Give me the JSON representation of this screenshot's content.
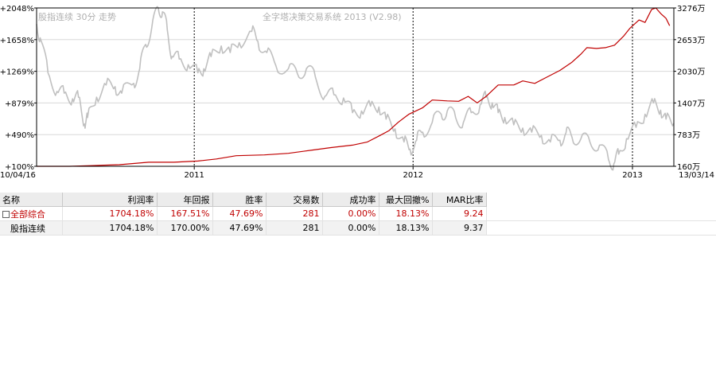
{
  "watermark": {
    "left": "股指连续 30分 走势",
    "center": "全字塔决策交易系统 2013 (V2.98)"
  },
  "chart_data": {
    "type": "line",
    "y_left": {
      "ticks": [
        "+2048%",
        "+1658%",
        "+1269%",
        "+879%",
        "+490%",
        "+100%"
      ],
      "range": [
        100,
        2048
      ]
    },
    "y_right": {
      "ticks": [
        "3276万",
        "2653万",
        "2030万",
        "1407万",
        "783万",
        "160万"
      ],
      "range": [
        160,
        3276
      ]
    },
    "x": {
      "start": "10/04/16",
      "end": "13/03/14",
      "year_labels": [
        {
          "label": "2011",
          "date": "2011-01-04"
        },
        {
          "label": "2012",
          "date": "2012-01-04"
        },
        {
          "label": "2013",
          "date": "2013-01-04"
        }
      ]
    },
    "series": [
      {
        "color": "#c0c0c0",
        "points": [
          [
            "2010-04-16",
            1850
          ],
          [
            "2010-04-22",
            1680
          ],
          [
            "2010-05-05",
            1250
          ],
          [
            "2010-05-20",
            1020
          ],
          [
            "2010-06-01",
            1000
          ],
          [
            "2010-06-15",
            930
          ],
          [
            "2010-06-25",
            950
          ],
          [
            "2010-07-05",
            620
          ],
          [
            "2010-07-10",
            700
          ],
          [
            "2010-07-25",
            950
          ],
          [
            "2010-08-10",
            1100
          ],
          [
            "2010-08-25",
            1080
          ],
          [
            "2010-09-05",
            1000
          ],
          [
            "2010-09-25",
            1120
          ],
          [
            "2010-10-05",
            1300
          ],
          [
            "2010-10-15",
            1600
          ],
          [
            "2010-10-25",
            1800
          ],
          [
            "2010-11-05",
            2048
          ],
          [
            "2010-11-12",
            2000
          ],
          [
            "2010-11-20",
            1780
          ],
          [
            "2010-11-28",
            1450
          ],
          [
            "2010-12-10",
            1420
          ],
          [
            "2010-12-25",
            1350
          ],
          [
            "2011-01-10",
            1250
          ],
          [
            "2011-01-20",
            1300
          ],
          [
            "2011-02-01",
            1450
          ],
          [
            "2011-02-18",
            1580
          ],
          [
            "2011-03-05",
            1500
          ],
          [
            "2011-03-20",
            1620
          ],
          [
            "2011-04-10",
            1760
          ],
          [
            "2011-04-20",
            1640
          ],
          [
            "2011-05-05",
            1500
          ],
          [
            "2011-05-20",
            1340
          ],
          [
            "2011-06-10",
            1300
          ],
          [
            "2011-06-25",
            1240
          ],
          [
            "2011-07-10",
            1300
          ],
          [
            "2011-07-25",
            1200
          ],
          [
            "2011-08-10",
            960
          ],
          [
            "2011-08-25",
            980
          ],
          [
            "2011-09-10",
            940
          ],
          [
            "2011-09-25",
            760
          ],
          [
            "2011-10-10",
            780
          ],
          [
            "2011-10-25",
            840
          ],
          [
            "2011-11-08",
            830
          ],
          [
            "2011-11-20",
            680
          ],
          [
            "2011-12-05",
            560
          ],
          [
            "2011-12-20",
            400
          ],
          [
            "2011-12-30",
            310
          ],
          [
            "2012-01-10",
            420
          ],
          [
            "2012-01-20",
            520
          ],
          [
            "2012-02-05",
            640
          ],
          [
            "2012-02-20",
            740
          ],
          [
            "2012-03-01",
            780
          ],
          [
            "2012-03-15",
            700
          ],
          [
            "2012-03-28",
            640
          ],
          [
            "2012-04-10",
            760
          ],
          [
            "2012-04-25",
            860
          ],
          [
            "2012-05-05",
            950
          ],
          [
            "2012-05-15",
            880
          ],
          [
            "2012-05-25",
            760
          ],
          [
            "2012-06-05",
            700
          ],
          [
            "2012-06-20",
            610
          ],
          [
            "2012-07-05",
            570
          ],
          [
            "2012-07-20",
            520
          ],
          [
            "2012-08-05",
            480
          ],
          [
            "2012-08-20",
            400
          ],
          [
            "2012-09-05",
            420
          ],
          [
            "2012-09-15",
            510
          ],
          [
            "2012-09-25",
            460
          ],
          [
            "2012-10-10",
            440
          ],
          [
            "2012-10-25",
            400
          ],
          [
            "2012-11-10",
            360
          ],
          [
            "2012-11-25",
            180
          ],
          [
            "2012-12-04",
            130
          ],
          [
            "2012-12-12",
            250
          ],
          [
            "2012-12-25",
            440
          ],
          [
            "2013-01-10",
            580
          ],
          [
            "2013-01-25",
            740
          ],
          [
            "2013-02-08",
            880
          ],
          [
            "2013-02-20",
            790
          ],
          [
            "2013-03-01",
            680
          ],
          [
            "2013-03-14",
            630
          ]
        ]
      },
      {
        "color": "#c00000",
        "points": [
          [
            "2010-04-16",
            100
          ],
          [
            "2010-06-10",
            100
          ],
          [
            "2010-07-15",
            108
          ],
          [
            "2010-09-01",
            120
          ],
          [
            "2010-10-20",
            150
          ],
          [
            "2010-12-01",
            150
          ],
          [
            "2011-01-10",
            165
          ],
          [
            "2011-02-10",
            190
          ],
          [
            "2011-03-15",
            230
          ],
          [
            "2011-05-01",
            240
          ],
          [
            "2011-06-10",
            260
          ],
          [
            "2011-07-20",
            300
          ],
          [
            "2011-08-20",
            330
          ],
          [
            "2011-09-25",
            360
          ],
          [
            "2011-10-20",
            400
          ],
          [
            "2011-11-10",
            480
          ],
          [
            "2011-11-25",
            540
          ],
          [
            "2011-12-10",
            640
          ],
          [
            "2011-12-28",
            740
          ],
          [
            "2012-01-20",
            820
          ],
          [
            "2012-02-05",
            915
          ],
          [
            "2012-03-01",
            905
          ],
          [
            "2012-03-20",
            900
          ],
          [
            "2012-04-05",
            960
          ],
          [
            "2012-04-20",
            880
          ],
          [
            "2012-05-05",
            960
          ],
          [
            "2012-05-25",
            1100
          ],
          [
            "2012-06-20",
            1100
          ],
          [
            "2012-07-05",
            1150
          ],
          [
            "2012-07-25",
            1120
          ],
          [
            "2012-08-15",
            1200
          ],
          [
            "2012-09-05",
            1280
          ],
          [
            "2012-09-25",
            1380
          ],
          [
            "2012-10-10",
            1480
          ],
          [
            "2012-10-20",
            1560
          ],
          [
            "2012-11-05",
            1550
          ],
          [
            "2012-11-20",
            1560
          ],
          [
            "2012-12-05",
            1590
          ],
          [
            "2012-12-20",
            1700
          ],
          [
            "2012-12-31",
            1800
          ],
          [
            "2013-01-15",
            1900
          ],
          [
            "2013-01-25",
            1870
          ],
          [
            "2013-02-05",
            2030
          ],
          [
            "2013-02-12",
            2048
          ],
          [
            "2013-02-20",
            1980
          ],
          [
            "2013-03-01",
            1920
          ],
          [
            "2013-03-07",
            1830
          ]
        ]
      }
    ]
  },
  "table": {
    "headers": [
      "名称",
      "利润率",
      "年回报",
      "胜率",
      "交易数",
      "成功率",
      "最大回撤%",
      "MAR比率"
    ],
    "rows": [
      {
        "name": "全部综合",
        "profit": "1704.18%",
        "annual": "167.51%",
        "winrate": "47.69%",
        "trades": "281",
        "success": "0.00%",
        "drawdown": "18.13%",
        "mar": "9.24",
        "color": "#c00000"
      },
      {
        "name": "股指连续",
        "profit": "1704.18%",
        "annual": "170.00%",
        "winrate": "47.69%",
        "trades": "281",
        "success": "0.00%",
        "drawdown": "18.13%",
        "mar": "9.37",
        "color": "#000000"
      }
    ]
  }
}
